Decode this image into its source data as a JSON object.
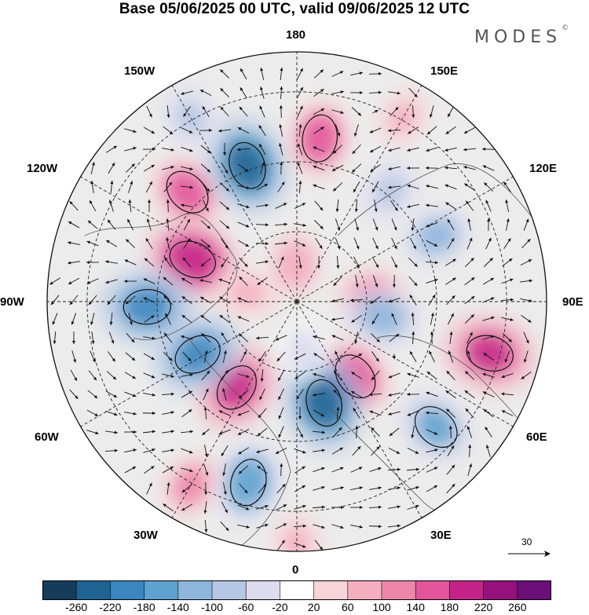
{
  "title": "Base 05/06/2025 00 UTC, valid 09/06/2025 12 UTC",
  "logo": "MODES",
  "logo_mark": "©",
  "longitude_labels": {
    "n180": "180",
    "w150": "150W",
    "e150": "150E",
    "w120": "120W",
    "e120": "120E",
    "w90": "90W",
    "e90": "90E",
    "w60": "60W",
    "e60": "60E",
    "w30": "30W",
    "e30": "30E",
    "s0": "0"
  },
  "reference_vector_label": "30",
  "colorbar": {
    "colors": [
      "#163c5c",
      "#1f6393",
      "#3a86be",
      "#5ea2cf",
      "#8db6dd",
      "#b6c7e3",
      "#dcdcee",
      "#ffffff",
      "#f7d4d8",
      "#f3aec0",
      "#ee86aa",
      "#e2559a",
      "#c42487",
      "#95127c",
      "#6b0f78"
    ],
    "ticks": [
      "-260",
      "-220",
      "-180",
      "-140",
      "-100",
      "-60",
      "-20",
      "20",
      "60",
      "100",
      "140",
      "180",
      "220",
      "260"
    ]
  },
  "anomaly_centers": [
    {
      "lon": -135,
      "r": 0.62,
      "value": 150
    },
    {
      "lon": -112,
      "r": 0.45,
      "value": 200
    },
    {
      "lon": -160,
      "r": 0.58,
      "value": -220
    },
    {
      "lon": -150,
      "r": 0.85,
      "value": -80
    },
    {
      "lon": 172,
      "r": 0.66,
      "value": 150
    },
    {
      "lon": 150,
      "r": 0.85,
      "value": 60
    },
    {
      "lon": 140,
      "r": 0.58,
      "value": -80
    },
    {
      "lon": 115,
      "r": 0.62,
      "value": -100
    },
    {
      "lon": 95,
      "r": 0.3,
      "value": 110
    },
    {
      "lon": 80,
      "r": 0.35,
      "value": -130
    },
    {
      "lon": 75,
      "r": 0.8,
      "value": 190
    },
    {
      "lon": 48,
      "r": 0.75,
      "value": -140
    },
    {
      "lon": 38,
      "r": 0.38,
      "value": 160
    },
    {
      "lon": 15,
      "r": 0.42,
      "value": -220
    },
    {
      "lon": -15,
      "r": 0.75,
      "value": -160
    },
    {
      "lon": -35,
      "r": 0.42,
      "value": 180
    },
    {
      "lon": -30,
      "r": 0.85,
      "value": 100
    },
    {
      "lon": -62,
      "r": 0.45,
      "value": -190
    },
    {
      "lon": -88,
      "r": 0.6,
      "value": -200
    },
    {
      "lon": -100,
      "r": 0.2,
      "value": 80
    },
    {
      "lon": 0,
      "r": 0.97,
      "value": 70
    },
    {
      "lon": 8,
      "r": 0.2,
      "value": -50
    },
    {
      "lon": -178,
      "r": 0.15,
      "value": 90
    }
  ]
}
